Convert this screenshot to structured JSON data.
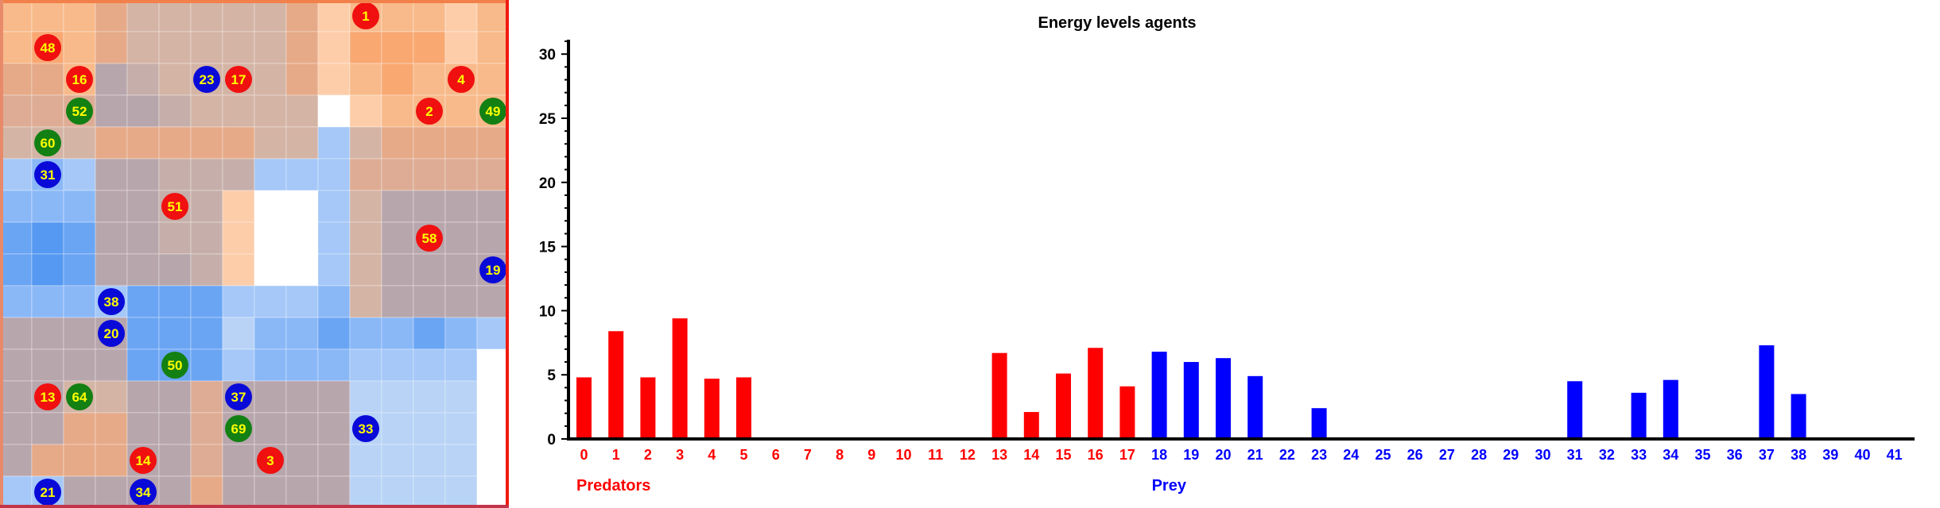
{
  "grid": {
    "columns": 16,
    "rows": 16,
    "palette": {
      "W": "#ffffff",
      "b1": "#b8d3f6",
      "b2": "#a5c8f8",
      "b3": "#8ab8f7",
      "b4": "#6aa5f4",
      "b5": "#5599f2",
      "o1": "#f8ba8a",
      "o2": "#f9a872",
      "o3": "#fdcdaa",
      "m1": "#d4b4a5",
      "m2": "#c6afaa",
      "m3": "#b8a6ad",
      "m4": "#e6aa88",
      "m5": "#deac94"
    },
    "cells": [
      "o1 o1 o1 m4 m1 m1 m1 m1 m1 m4 o3 o1 o1 o1 o3 o1",
      "o1 o2 o1 m4 m1 m1 m1 m1 m1 m4 o3 o2 o2 o2 o3 o1",
      "m4 m4 o1 m3 m2 m1 m1 m1 m1 m4 o3 o1 o2 o1 o1 o1",
      "m5 m5 m5 m3 m3 m2 m1 m1 m1 m1 W o3 o1 o1 o1 o1",
      "m1 m1 m1 m4 m4 m4 m4 m4 m1 m1 b2 m1 m4 m4 m4 m4",
      "b2 b3 b2 m3 m3 m2 m2 m2 b2 b2 b2 m5 m5 m5 m5 m5",
      "b3 b3 b3 m3 m3 m2 m2 o3 W W b2 m1 m3 m3 m3 m3",
      "b4 b5 b4 m3 m3 m2 m2 o3 W W b2 m1 m3 m3 m3 m3",
      "b4 b5 b4 m3 m3 m3 m2 o3 W W b2 m1 m3 m3 m3 m3",
      "b3 b3 b3 b2 b4 b4 b4 b2 b2 b2 b3 m1 m3 m3 m3 m3",
      "m3 m3 m3 m3 b4 b4 b4 b1 b3 b3 b4 b3 b3 b4 b3 b2",
      "m3 m3 m3 m3 b4 b4 b4 b2 b3 b3 b3 b2 b2 b2 b2 W",
      "m3 m3 m1 m1 m3 m3 m5 m3 m3 m3 m3 b1 b1 b1 b1 W",
      "m3 m3 m4 m4 m3 m3 m5 m3 m3 m3 m3 b1 b1 b1 b1 W",
      "m3 m4 m4 m4 m3 m3 m5 m3 m3 m3 m3 b1 b1 b1 b1 W",
      "b2 b2 m3 m3 m3 m3 m4 m3 m3 m3 m3 b1 b1 b1 b1 W"
    ],
    "agents": [
      {
        "id": "1",
        "kind": "predator",
        "col": 11,
        "row": 0
      },
      {
        "id": "48",
        "kind": "predator",
        "col": 1,
        "row": 1
      },
      {
        "id": "16",
        "kind": "predator",
        "col": 2,
        "row": 2
      },
      {
        "id": "23",
        "kind": "prey",
        "col": 6,
        "row": 2
      },
      {
        "id": "17",
        "kind": "predator",
        "col": 7,
        "row": 2
      },
      {
        "id": "4",
        "kind": "predator",
        "col": 14,
        "row": 2
      },
      {
        "id": "52",
        "kind": "plant",
        "col": 2,
        "row": 3
      },
      {
        "id": "2",
        "kind": "predator",
        "col": 13,
        "row": 3
      },
      {
        "id": "49",
        "kind": "plant",
        "col": 15,
        "row": 3
      },
      {
        "id": "60",
        "kind": "plant",
        "col": 1,
        "row": 4
      },
      {
        "id": "31",
        "kind": "prey",
        "col": 1,
        "row": 5
      },
      {
        "id": "51",
        "kind": "predator",
        "col": 5,
        "row": 6
      },
      {
        "id": "58",
        "kind": "predator",
        "col": 13,
        "row": 7
      },
      {
        "id": "19",
        "kind": "prey",
        "col": 15,
        "row": 8
      },
      {
        "id": "38",
        "kind": "prey",
        "col": 3,
        "row": 9
      },
      {
        "id": "20",
        "kind": "prey",
        "col": 3,
        "row": 10
      },
      {
        "id": "50",
        "kind": "plant",
        "col": 5,
        "row": 11
      },
      {
        "id": "13",
        "kind": "predator",
        "col": 1,
        "row": 12
      },
      {
        "id": "64",
        "kind": "plant",
        "col": 2,
        "row": 12
      },
      {
        "id": "37",
        "kind": "prey",
        "col": 7,
        "row": 12
      },
      {
        "id": "69",
        "kind": "plant",
        "col": 7,
        "row": 13
      },
      {
        "id": "33",
        "kind": "prey",
        "col": 11,
        "row": 13
      },
      {
        "id": "14",
        "kind": "predator",
        "col": 4,
        "row": 14
      },
      {
        "id": "3",
        "kind": "predator",
        "col": 8,
        "row": 14
      },
      {
        "id": "21",
        "kind": "prey",
        "col": 1,
        "row": 15
      },
      {
        "id": "34",
        "kind": "prey",
        "col": 4,
        "row": 15
      }
    ],
    "agent_colors": {
      "predator": "#f01010",
      "prey": "#0a0ad8",
      "plant": "#138013"
    },
    "agent_text_color": "#ffff00",
    "border_colors": {
      "top": "#f2804a",
      "left": "#e88a6a",
      "right": "#f01a10",
      "bottom": "#c23448"
    }
  },
  "chart_data": {
    "type": "bar",
    "title": "Energy levels agents",
    "xlabel": "",
    "ylabel": "",
    "ylim": [
      0,
      31
    ],
    "yticks": [
      "0",
      "5",
      "10",
      "15",
      "20",
      "25",
      "30"
    ],
    "categories": [
      "0",
      "1",
      "2",
      "3",
      "4",
      "5",
      "6",
      "7",
      "8",
      "9",
      "10",
      "11",
      "12",
      "13",
      "14",
      "15",
      "16",
      "17",
      "18",
      "19",
      "20",
      "21",
      "22",
      "23",
      "24",
      "25",
      "26",
      "27",
      "28",
      "29",
      "30",
      "31",
      "32",
      "33",
      "34",
      "35",
      "36",
      "37",
      "38",
      "39",
      "40",
      "41"
    ],
    "values": [
      4.8,
      8.4,
      4.8,
      9.4,
      4.7,
      4.8,
      0,
      0,
      0,
      0,
      0,
      0,
      0,
      6.7,
      2.1,
      5.1,
      7.1,
      4.1,
      6.8,
      6.0,
      6.3,
      4.9,
      0,
      2.4,
      0,
      0,
      0,
      0,
      0,
      0,
      0,
      4.5,
      0,
      3.6,
      4.6,
      0,
      0,
      7.3,
      3.5,
      0,
      0,
      0
    ],
    "category_groups": [
      "red",
      "red",
      "red",
      "red",
      "red",
      "red",
      "red",
      "red",
      "red",
      "red",
      "red",
      "red",
      "red",
      "red",
      "red",
      "red",
      "red",
      "red",
      "blue",
      "blue",
      "blue",
      "blue",
      "blue",
      "blue",
      "blue",
      "blue",
      "blue",
      "blue",
      "blue",
      "blue",
      "blue",
      "blue",
      "blue",
      "blue",
      "blue",
      "blue",
      "blue",
      "blue",
      "blue",
      "blue",
      "blue",
      "blue"
    ],
    "colors": {
      "red": "#ff0000",
      "blue": "#0000ff",
      "axis": "#000000"
    },
    "group_labels": [
      {
        "text": "Predators",
        "group": "red",
        "start_index": 0
      },
      {
        "text": "Prey",
        "group": "blue",
        "start_index": 18
      }
    ]
  }
}
